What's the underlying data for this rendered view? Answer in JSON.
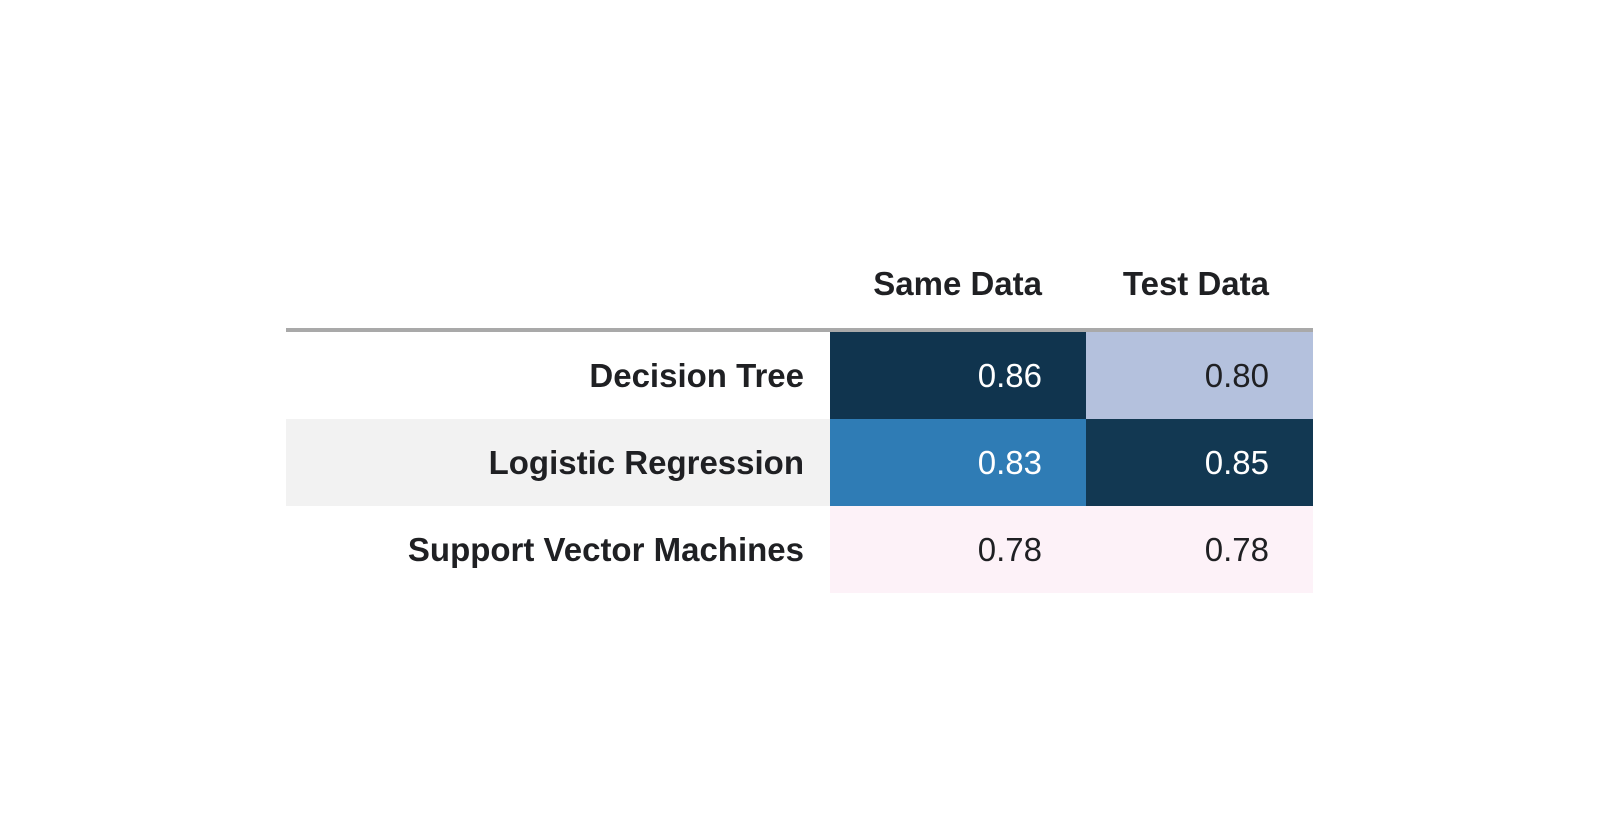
{
  "table": {
    "header": {
      "columns": [
        "Same Data",
        "Test Data"
      ]
    },
    "divider_color": "#a9a9a9",
    "text_color": "#1f2023",
    "rows": [
      {
        "label": "Decision Tree",
        "label_bg": "#ffffff",
        "cells": [
          {
            "text": "0.86",
            "bg": "#10344e",
            "fg": "#ffffff"
          },
          {
            "text": "0.80",
            "bg": "#b4c1dd",
            "fg": "#1f2023"
          }
        ]
      },
      {
        "label": "Logistic Regression",
        "label_bg": "#f2f2f2",
        "cells": [
          {
            "text": "0.83",
            "bg": "#2f7cb5",
            "fg": "#ffffff"
          },
          {
            "text": "0.85",
            "bg": "#123852",
            "fg": "#ffffff"
          }
        ]
      },
      {
        "label": "Support Vector Machines",
        "label_bg": "#ffffff",
        "cells": [
          {
            "text": "0.78",
            "bg": "#fdf2f8",
            "fg": "#1f2023"
          },
          {
            "text": "0.78",
            "bg": "#fdf2f8",
            "fg": "#1f2023"
          }
        ]
      }
    ]
  },
  "chart_data": {
    "type": "table",
    "title": "",
    "columns": [
      "Same Data",
      "Test Data"
    ],
    "row_labels": [
      "Decision Tree",
      "Logistic Regression",
      "Support Vector Machines"
    ],
    "series": [
      {
        "name": "Same Data",
        "values": [
          0.86,
          0.83,
          0.78
        ]
      },
      {
        "name": "Test Data",
        "values": [
          0.8,
          0.85,
          0.78
        ]
      }
    ],
    "style": "heatmap background gradient, dark navy = high value, pale pink = low value",
    "value_range": [
      0.78,
      0.86
    ]
  }
}
